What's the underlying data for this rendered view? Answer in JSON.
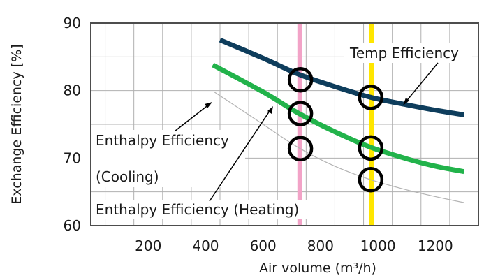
{
  "chart_data": {
    "type": "line",
    "xlabel": "Air volume (m³/h)",
    "ylabel": "Exchange Efficiency [%]",
    "xlim": [
      0,
      1350
    ],
    "ylim": [
      60,
      90
    ],
    "x_ticks": [
      200,
      400,
      600,
      800,
      1000,
      1200
    ],
    "y_ticks": [
      60,
      70,
      80,
      90
    ],
    "grid": true,
    "series": [
      {
        "name": "Temp Efficiency",
        "color": "#0e3d5c",
        "x": [
          450,
          600,
          725,
          850,
          975,
          1100,
          1200,
          1300
        ],
        "y": [
          87.5,
          84.8,
          82.4,
          80.6,
          79.0,
          77.9,
          77.1,
          76.4
        ]
      },
      {
        "name": "Enthalpy Efficiency (Heating)",
        "color": "#22b34b",
        "x": [
          425,
          600,
          725,
          850,
          975,
          1100,
          1200,
          1300
        ],
        "y": [
          83.8,
          79.8,
          76.6,
          73.9,
          71.6,
          69.9,
          68.8,
          68.0
        ]
      },
      {
        "name": "Enthalpy Efficiency (Cooling)",
        "color": "#b3b3b3",
        "x": [
          430,
          600,
          725,
          850,
          975,
          1100,
          1200,
          1300
        ],
        "y": [
          79.8,
          75.0,
          71.5,
          68.8,
          66.8,
          65.3,
          64.3,
          63.4
        ]
      }
    ],
    "vertical_markers": [
      {
        "x": 728,
        "color": "#f2a3c7"
      },
      {
        "x": 978,
        "color": "#ffe600"
      }
    ],
    "circles": [
      {
        "x": 730,
        "y": 81.6
      },
      {
        "x": 730,
        "y": 76.6
      },
      {
        "x": 730,
        "y": 71.4
      },
      {
        "x": 975,
        "y": 79.0
      },
      {
        "x": 975,
        "y": 71.5
      },
      {
        "x": 975,
        "y": 66.8
      }
    ],
    "annotations": {
      "temp": "Temp Efficiency",
      "cooling_line1": "Enthalpy Efficiency",
      "cooling_line2": "(Cooling)",
      "heating": "Enthalpy Efficiency (Heating)"
    }
  }
}
